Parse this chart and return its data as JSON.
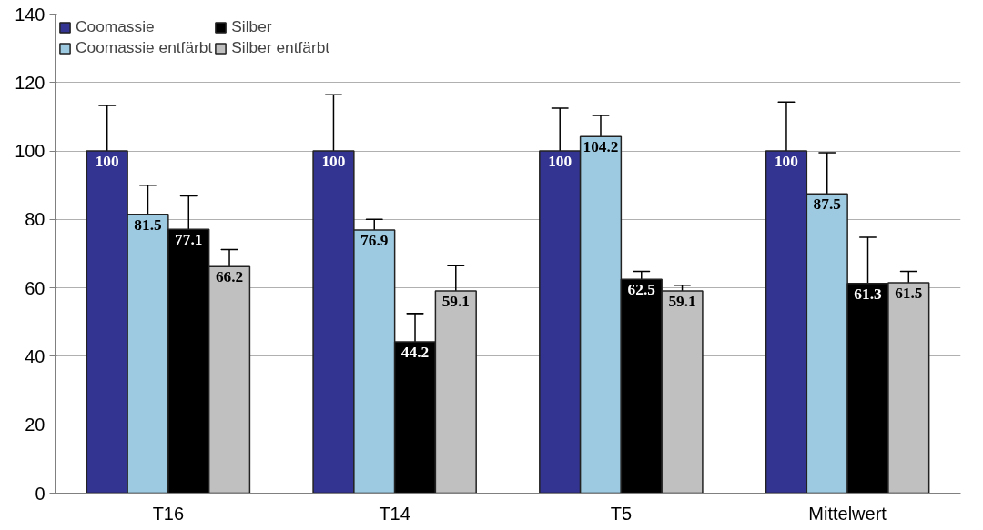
{
  "chart_data": {
    "type": "bar",
    "categories": [
      "T16",
      "T14",
      "T5",
      "Mittelwert"
    ],
    "series": [
      {
        "name": "Coomassie",
        "color": "#333391",
        "values": [
          100,
          100,
          100,
          100
        ],
        "errors": [
          [
            100,
            113.3
          ],
          [
            100,
            116.4
          ],
          [
            100,
            112.5
          ],
          [
            100,
            114.3
          ]
        ]
      },
      {
        "name": "Coomassie entfärbt",
        "color": "#9dcae1",
        "values": [
          81.5,
          76.9,
          104.2,
          87.5
        ],
        "errors": [
          [
            81.5,
            90
          ],
          [
            76.9,
            80
          ],
          [
            104.2,
            110.4
          ],
          [
            87.5,
            99.5
          ]
        ]
      },
      {
        "name": "Silber",
        "color": "#000000",
        "values": [
          77.1,
          44.2,
          62.5,
          61.3
        ],
        "errors": [
          [
            77.1,
            86.9
          ],
          [
            44.2,
            52.5
          ],
          [
            62.5,
            64.8
          ],
          [
            61.3,
            74.8
          ]
        ]
      },
      {
        "name": "Silber entfärbt",
        "color": "#c0c0c0",
        "values": [
          66.2,
          59.1,
          59.1,
          61.5
        ],
        "errors": [
          [
            66.2,
            71.2
          ],
          [
            59.1,
            66.5
          ],
          [
            59.1,
            60.8
          ],
          [
            61.5,
            64.8
          ]
        ]
      }
    ],
    "ylim": [
      0,
      140
    ],
    "yticks": [
      0,
      20,
      40,
      60,
      80,
      100,
      120,
      140
    ],
    "grid": "y",
    "legend": "top left",
    "data_labels": true
  }
}
